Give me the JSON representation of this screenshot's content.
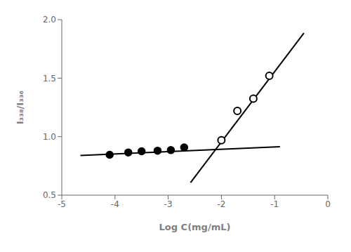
{
  "chart_data": {
    "type": "scatter",
    "xlabel": "Log C(mg/mL)",
    "ylabel": "I₃₃₈/I₃₃₆",
    "xlim": [
      -5,
      0
    ],
    "ylim": [
      0.5,
      2.0
    ],
    "xticks": [
      -5,
      -4,
      -3,
      -2,
      -1,
      0
    ],
    "yticks": [
      0.5,
      {
        "value": 1,
        "label": "1.0"
      },
      1.5,
      {
        "value": 2,
        "label": "2.0"
      }
    ],
    "grid": false,
    "series": [
      {
        "type": "line",
        "color": "#000000",
        "x": [
          -4.65,
          -0.9
        ],
        "values": [
          0.839,
          0.914
        ]
      },
      {
        "type": "line",
        "color": "#000000",
        "x": [
          -2.58,
          -0.45
        ],
        "values": [
          0.607,
          1.885
        ]
      },
      {
        "type": "scatter",
        "marker": "circle",
        "color": "#000000",
        "x": [
          -4.1,
          -3.75,
          -3.5,
          -3.2,
          -2.95,
          -2.7
        ],
        "values": [
          0.845,
          0.865,
          0.875,
          0.88,
          0.885,
          0.908
        ]
      },
      {
        "type": "scatter",
        "marker": "open_circle",
        "color": "#000000",
        "x": [
          -2.0,
          -1.7,
          -1.4,
          -1.1
        ],
        "values": [
          0.97,
          1.22,
          1.325,
          1.52
        ]
      }
    ]
  }
}
